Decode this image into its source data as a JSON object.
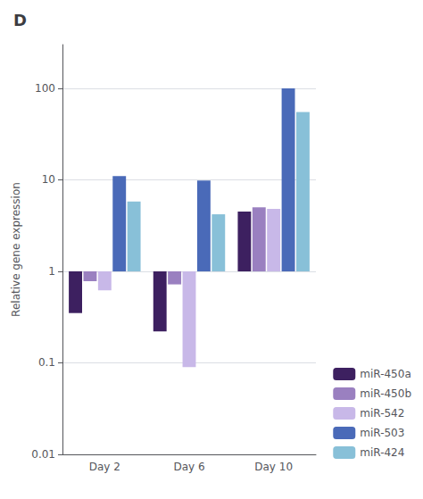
{
  "chart_data": {
    "type": "bar",
    "title": "D",
    "categories": [
      "Day 2",
      "Day 6",
      "Day 10"
    ],
    "series": [
      {
        "name": "miR-450a",
        "color": "#3d2060",
        "values": [
          0.35,
          0.22,
          4.5
        ]
      },
      {
        "name": "miR-450b",
        "color": "#9a80c0",
        "values": [
          0.78,
          0.72,
          5.0
        ]
      },
      {
        "name": "miR-542",
        "color": "#c8b8e8",
        "values": [
          0.62,
          0.09,
          4.8
        ]
      },
      {
        "name": "miR-503",
        "color": "#4a6ab8",
        "values": [
          11.0,
          9.8,
          100.0
        ]
      },
      {
        "name": "miR-424",
        "color": "#88c0d8",
        "values": [
          5.8,
          4.2,
          55.0
        ]
      }
    ],
    "ylabel": "Relative gene expression",
    "log": "y",
    "ylim": [
      0.01,
      300
    ],
    "yticks": [
      0.01,
      0.1,
      1,
      10,
      100
    ],
    "grid": true,
    "legend": "lower right"
  }
}
